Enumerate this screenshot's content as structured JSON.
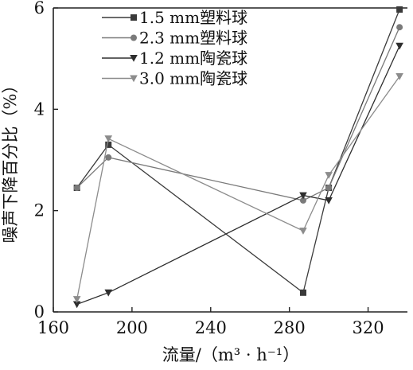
{
  "chart_data": {
    "type": "line",
    "xlabel": "流量/（m³ · h⁻¹）",
    "ylabel": "噪声下降百分比（%）",
    "xlim": [
      160,
      340
    ],
    "ylim": [
      0,
      6
    ],
    "xticks": [
      160,
      200,
      240,
      280,
      320
    ],
    "yticks": [
      0,
      2,
      4,
      6
    ],
    "grid": false,
    "legend": "top-center",
    "series": [
      {
        "name": "1.5 mm塑料球",
        "marker": "square",
        "color": "#3a3a3a",
        "x": [
          172,
          188,
          287,
          300,
          336
        ],
        "y": [
          2.45,
          3.3,
          0.38,
          2.45,
          5.97
        ]
      },
      {
        "name": "2.3 mm塑料球",
        "marker": "circle",
        "color": "#7a7a7a",
        "x": [
          172,
          188,
          287,
          300,
          336
        ],
        "y": [
          2.45,
          3.05,
          2.2,
          2.45,
          5.62
        ]
      },
      {
        "name": "1.2 mm陶瓷球",
        "marker": "triangle-down",
        "color": "#2e2e2e",
        "x": [
          172,
          188,
          287,
          300,
          336
        ],
        "y": [
          0.15,
          0.38,
          2.3,
          2.2,
          5.25
        ]
      },
      {
        "name": "3.0 mm陶瓷球",
        "marker": "triangle-down",
        "color": "#8c8c8c",
        "x": [
          172,
          188,
          287,
          300,
          336
        ],
        "y": [
          0.25,
          3.42,
          1.6,
          2.7,
          4.65
        ]
      }
    ]
  }
}
